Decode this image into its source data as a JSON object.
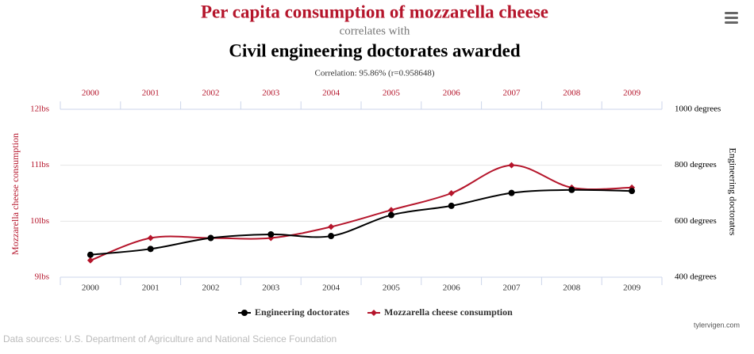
{
  "chart_data": {
    "type": "line",
    "title": "Per capita consumption of mozzarella cheese",
    "connector": "correlates with",
    "title2": "Civil engineering doctorates awarded",
    "annotation": "Correlation: 95.86% (r=0.958648)",
    "source": "Data sources: U.S. Department of Agriculture and National Science Foundation",
    "credit": "tylervigen.com",
    "ylabel": "Mozzarella cheese consumption",
    "y2label": "Engineering doctorates",
    "categories": [
      "2000",
      "2001",
      "2002",
      "2003",
      "2004",
      "2005",
      "2006",
      "2007",
      "2008",
      "2009"
    ],
    "ylim": [
      9,
      12
    ],
    "yticks": [
      {
        "value": 9,
        "label": "9lbs"
      },
      {
        "value": 10,
        "label": "10lbs"
      },
      {
        "value": 11,
        "label": "11lbs"
      },
      {
        "value": 12,
        "label": "12lbs"
      }
    ],
    "y2lim": [
      400,
      1000
    ],
    "y2ticks": [
      {
        "value": 400,
        "label": "400 degrees"
      },
      {
        "value": 600,
        "label": "600 degrees"
      },
      {
        "value": 800,
        "label": "800 degrees"
      },
      {
        "value": 1000,
        "label": "1000 degrees"
      }
    ],
    "grid": true,
    "series": [
      {
        "name": "Engineering doctorates",
        "color": "#000000",
        "axis": "y2",
        "marker": "circle",
        "values": [
          480,
          501,
          540,
          553,
          547,
          622,
          655,
          701,
          712,
          708
        ]
      },
      {
        "name": "Mozzarella cheese consumption",
        "color": "#b5152b",
        "axis": "y",
        "marker": "diamond",
        "values": [
          9.3,
          9.7,
          9.7,
          9.7,
          9.9,
          10.2,
          10.5,
          11.0,
          10.6,
          10.6
        ]
      }
    ]
  }
}
